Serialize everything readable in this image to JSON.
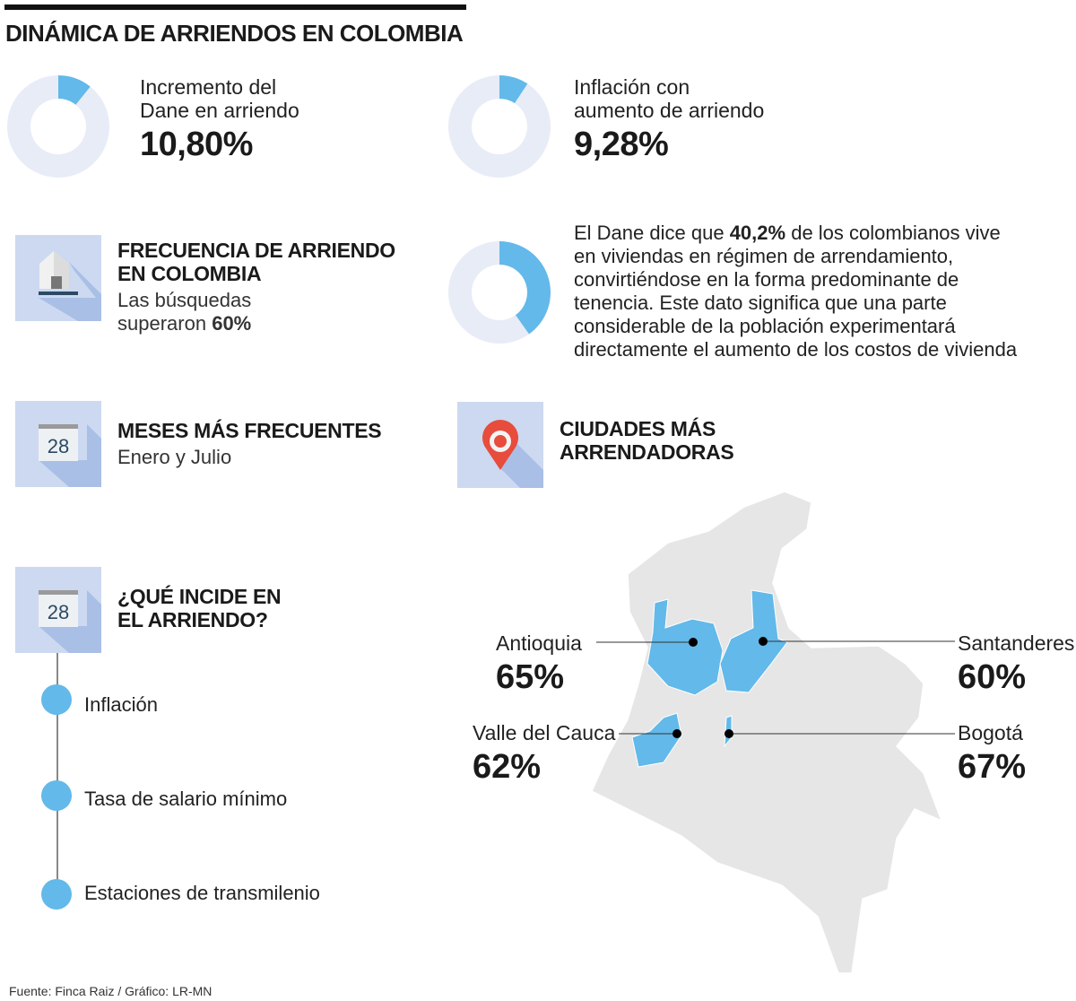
{
  "title": "DINÁMICA DE ARRIENDOS EN COLOMBIA",
  "colors": {
    "accent": "#63b9e9",
    "track": "#e8ecf7",
    "map": "#e6e6e6",
    "icon_bg": "#ccd9f1"
  },
  "stat1": {
    "label_1": "Incremento del",
    "label_2": "Dane en arriendo",
    "value": "10,80%"
  },
  "stat2": {
    "label_1": "Inflación con",
    "label_2": "aumento de arriendo",
    "value": "9,28%"
  },
  "frecuencia": {
    "head_1": "FRECUENCIA DE ARRIENDO",
    "head_2": "EN COLOMBIA",
    "sub_1": "Las búsquedas",
    "sub_2": "superaron",
    "sub_bold": "60%"
  },
  "dane": {
    "pre": "El Dane dice que",
    "bold": "40,2%",
    "post": "de los colombianos vive",
    "lines": [
      "en viviendas en régimen de arrendamiento,",
      "convirtiéndose en la forma predominante de",
      "tenencia. Este dato significa que una parte",
      "considerable de la población experimentará",
      "directamente el aumento de los costos de vivienda"
    ]
  },
  "meses": {
    "head": "MESES MÁS FRECUENTES",
    "sub": "Enero y Julio",
    "calendar_day": "28"
  },
  "ciudades": {
    "head_1": "CIUDADES MÁS",
    "head_2": "ARRENDADORAS"
  },
  "incide": {
    "head_1": "¿QUÉ INCIDE EN",
    "head_2": "EL ARRIENDO?",
    "calendar_day": "28",
    "items": [
      "Inflación",
      "Tasa de salario mínimo",
      "Estaciones de transmilenio"
    ]
  },
  "regions": [
    {
      "name": "Antioquia",
      "value": "65%"
    },
    {
      "name": "Santanderes",
      "value": "60%"
    },
    {
      "name": "Valle del Cauca",
      "value": "62%"
    },
    {
      "name": "Bogotá",
      "value": "67%"
    }
  ],
  "source": "Fuente: Finca Raiz / Gráfico: LR-MN",
  "chart_data": [
    {
      "type": "pie",
      "title": "Incremento del Dane en arriendo",
      "values": [
        10.8,
        89.2
      ]
    },
    {
      "type": "pie",
      "title": "Inflación con aumento de arriendo",
      "values": [
        9.28,
        90.72
      ]
    },
    {
      "type": "pie",
      "title": "Colombianos que viven en arriendo",
      "values": [
        40.2,
        59.8
      ]
    }
  ]
}
